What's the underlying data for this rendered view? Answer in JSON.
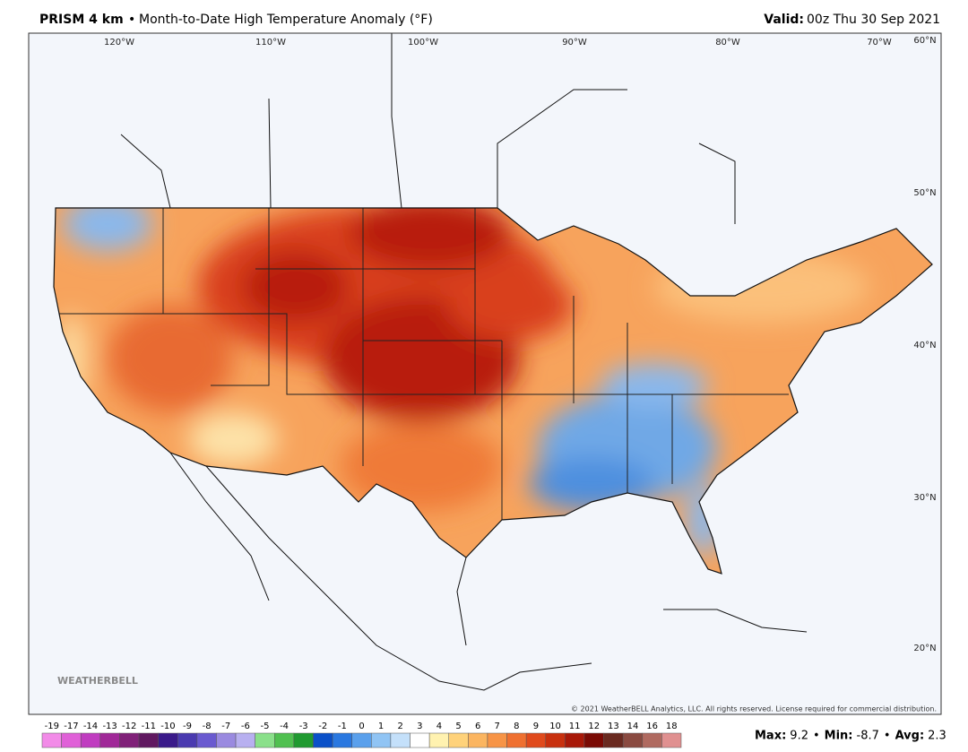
{
  "header": {
    "model": "PRISM 4 km",
    "separator": "•",
    "title": "Month-to-Date High Temperature Anomaly (°F)",
    "valid_label": "Valid:",
    "valid_time": "00z Thu 30 Sep 2021"
  },
  "map": {
    "longitudes": [
      "120°W",
      "110°W",
      "100°W",
      "90°W",
      "80°W",
      "70°W"
    ],
    "latitudes": [
      "60°N",
      "50°N",
      "40°N",
      "30°N",
      "20°N"
    ],
    "watermark": "WEATHERBELL",
    "copyright": "© 2021 WeatherBELL Analytics, LLC. All rights reserved. License required for commercial distribution."
  },
  "colorbar": {
    "labels": [
      "-19",
      "-17",
      "-14",
      "-13",
      "-12",
      "-11",
      "-10",
      "-9",
      "-8",
      "-7",
      "-6",
      "-5",
      "-4",
      "-3",
      "-2",
      "-1",
      "0",
      "1",
      "2",
      "3",
      "4",
      "5",
      "6",
      "7",
      "8",
      "9",
      "10",
      "11",
      "12",
      "13",
      "14",
      "16",
      "18"
    ],
    "colors": [
      "#f28be8",
      "#e060d8",
      "#c03cc0",
      "#a02898",
      "#802078",
      "#601860",
      "#3a1a8a",
      "#4a3ab0",
      "#6a5ad0",
      "#9a8ae0",
      "#b8b0f0",
      "#8ae08a",
      "#50c050",
      "#209a30",
      "#0a50c8",
      "#2a78e0",
      "#5aa0ec",
      "#90c4f4",
      "#c4e0fa",
      "#ffffff",
      "#fff2b0",
      "#ffd27a",
      "#fbb560",
      "#f79446",
      "#ef7030",
      "#e04a1c",
      "#c8300e",
      "#a81808",
      "#7a0a04",
      "#6a2a20",
      "#8a4a40",
      "#b06a60",
      "#e09090"
    ]
  },
  "stats": [
    {
      "label": "Max:",
      "value": 9.2
    },
    {
      "label": "Min:",
      "value": -8.7
    },
    {
      "label": "Avg:",
      "value": 2.3
    }
  ]
}
